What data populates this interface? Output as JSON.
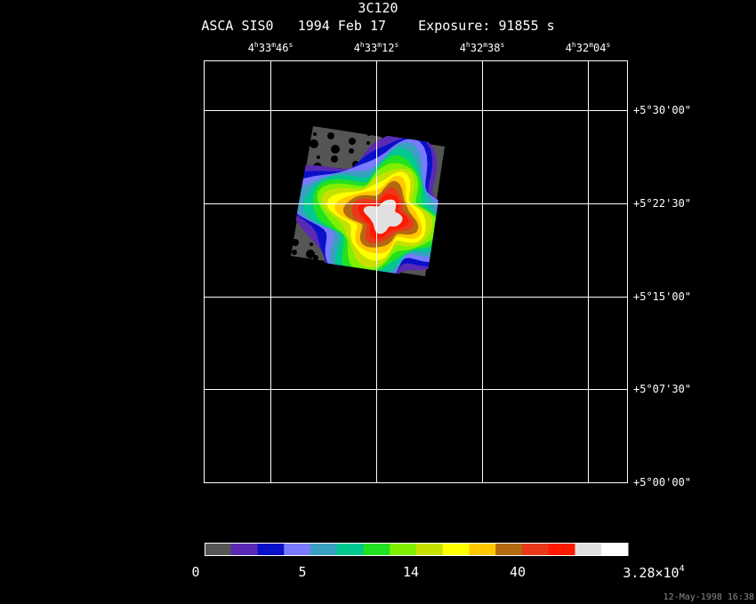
{
  "header": {
    "title": "3C120",
    "instrument": "ASCA SIS0",
    "date": "1994 Feb 17",
    "exposure": "Exposure: 91855 s"
  },
  "footer": {
    "timestamp": "12-May-1998 16:38"
  },
  "chart_data": {
    "type": "heatmap",
    "title": "3C120",
    "subtitle": "ASCA SIS0   1994 Feb 17    Exposure: 91855 s",
    "x_ticks": [
      {
        "h": "4",
        "m": "33",
        "s": "46"
      },
      {
        "h": "4",
        "m": "33",
        "s": "12"
      },
      {
        "h": "4",
        "m": "32",
        "s": "38"
      },
      {
        "h": "4",
        "m": "32",
        "s": "04"
      }
    ],
    "y_ticks": [
      "+5°30'00\"",
      "+5°22'30\"",
      "+5°15'00\"",
      "+5°07'30\"",
      "+5°00'00\""
    ],
    "grid": true,
    "colorbar": {
      "colors": [
        "#555555",
        "#5a2ab4",
        "#0a10c8",
        "#7a7aff",
        "#3aa0c0",
        "#00c890",
        "#22e022",
        "#80f000",
        "#c8e000",
        "#ffff00",
        "#ffc800",
        "#b46a10",
        "#e83a1a",
        "#ff1a00",
        "#e0e0e0",
        "#ffffff"
      ],
      "tick_labels": [
        {
          "text": "0"
        },
        {
          "text": "5"
        },
        {
          "text": "14"
        },
        {
          "text": "40"
        },
        {
          "text": "3.28×10",
          "exp": "4"
        }
      ]
    },
    "contour_levels_colors": [
      "#555555",
      "#5a2ab4",
      "#0a10c8",
      "#7a7aff",
      "#3aa0c0",
      "#00c890",
      "#22e022",
      "#80f000",
      "#c8e000",
      "#ffff00",
      "#ffc800",
      "#b46a10",
      "#e83a1a",
      "#ff1a00",
      "#e0e0e0"
    ]
  }
}
